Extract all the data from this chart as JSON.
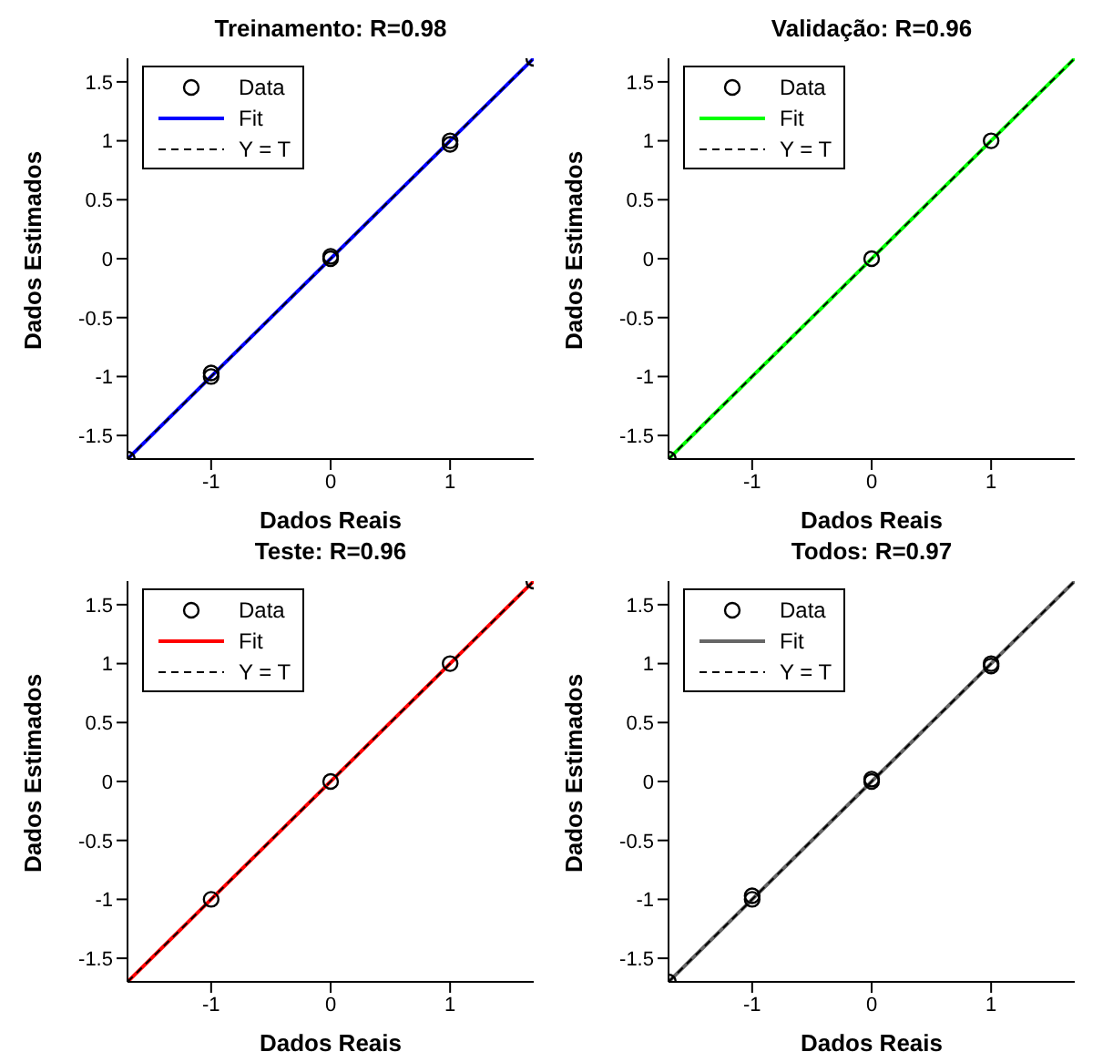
{
  "chart_data": [
    {
      "type": "scatter",
      "title": "Treinamento: R=0.98",
      "xlabel": "Dados Reais",
      "ylabel": "Dados Estimados",
      "xlim": [
        -1.7,
        1.7
      ],
      "ylim": [
        -1.7,
        1.7
      ],
      "xticks": [
        -1,
        0,
        1
      ],
      "yticks": [
        -1.5,
        -1,
        -0.5,
        0,
        0.5,
        1,
        1.5
      ],
      "legend": "top left",
      "series": [
        {
          "name": "Data",
          "marker": "circle",
          "color": "#000000",
          "x": [
            -1.7,
            -1,
            -1,
            0,
            0,
            1,
            1,
            1.7
          ],
          "values": [
            -1.7,
            -1,
            -0.97,
            0,
            0.02,
            1,
            0.97,
            1.7
          ]
        },
        {
          "name": "Fit",
          "type": "line",
          "color": "#0000ff",
          "x": [
            -1.7,
            1.7
          ],
          "values": [
            -1.7,
            1.7
          ]
        },
        {
          "name": "Y = T",
          "type": "line",
          "line_style": "dashed",
          "color": "#000000",
          "x": [
            -1.7,
            1.7
          ],
          "values": [
            -1.7,
            1.7
          ]
        }
      ]
    },
    {
      "type": "scatter",
      "title": "Validação: R=0.96",
      "xlabel": "Dados Reais",
      "ylabel": "Dados Estimados",
      "xlim": [
        -1.7,
        1.7
      ],
      "ylim": [
        -1.7,
        1.7
      ],
      "xticks": [
        -1,
        0,
        1
      ],
      "yticks": [
        -1.5,
        -1,
        -0.5,
        0,
        0.5,
        1,
        1.5
      ],
      "legend": "top left",
      "series": [
        {
          "name": "Data",
          "marker": "circle",
          "color": "#000000",
          "x": [
            -1.7,
            0,
            1
          ],
          "values": [
            -1.7,
            0,
            1
          ]
        },
        {
          "name": "Fit",
          "type": "line",
          "color": "#00ff00",
          "x": [
            -1.7,
            1.7
          ],
          "values": [
            -1.7,
            1.7
          ]
        },
        {
          "name": "Y = T",
          "type": "line",
          "line_style": "dashed",
          "color": "#000000",
          "x": [
            -1.7,
            1.7
          ],
          "values": [
            -1.7,
            1.7
          ]
        }
      ]
    },
    {
      "type": "scatter",
      "title": "Teste: R=0.96",
      "xlabel": "Dados Reais",
      "ylabel": "Dados Estimados",
      "xlim": [
        -1.7,
        1.7
      ],
      "ylim": [
        -1.7,
        1.7
      ],
      "xticks": [
        -1,
        0,
        1
      ],
      "yticks": [
        -1.5,
        -1,
        -0.5,
        0,
        0.5,
        1,
        1.5
      ],
      "legend": "top left",
      "series": [
        {
          "name": "Data",
          "marker": "circle",
          "color": "#000000",
          "x": [
            -1,
            0,
            1,
            1.7
          ],
          "values": [
            -1,
            0,
            1,
            1.7
          ]
        },
        {
          "name": "Fit",
          "type": "line",
          "color": "#ff0000",
          "x": [
            -1.7,
            1.7
          ],
          "values": [
            -1.7,
            1.7
          ]
        },
        {
          "name": "Y = T",
          "type": "line",
          "line_style": "dashed",
          "color": "#000000",
          "x": [
            -1.7,
            1.7
          ],
          "values": [
            -1.7,
            1.7
          ]
        }
      ]
    },
    {
      "type": "scatter",
      "title": "Todos: R=0.97",
      "xlabel": "Dados Reais",
      "ylabel": "Dados Estimados",
      "xlim": [
        -1.7,
        1.7
      ],
      "ylim": [
        -1.7,
        1.7
      ],
      "xticks": [
        -1,
        0,
        1
      ],
      "yticks": [
        -1.5,
        -1,
        -0.5,
        0,
        0.5,
        1,
        1.5
      ],
      "legend": "top left",
      "series": [
        {
          "name": "Data",
          "marker": "circle",
          "color": "#000000",
          "x": [
            -1.7,
            -1,
            -1,
            0,
            0,
            1,
            1
          ],
          "values": [
            -1.7,
            -1,
            -0.97,
            0,
            0.02,
            1,
            0.98
          ]
        },
        {
          "name": "Fit",
          "type": "line",
          "color": "#666666",
          "x": [
            -1.7,
            1.7
          ],
          "values": [
            -1.7,
            1.7
          ]
        },
        {
          "name": "Y = T",
          "type": "line",
          "line_style": "dashed",
          "color": "#000000",
          "x": [
            -1.7,
            1.7
          ],
          "values": [
            -1.7,
            1.7
          ]
        }
      ]
    }
  ]
}
